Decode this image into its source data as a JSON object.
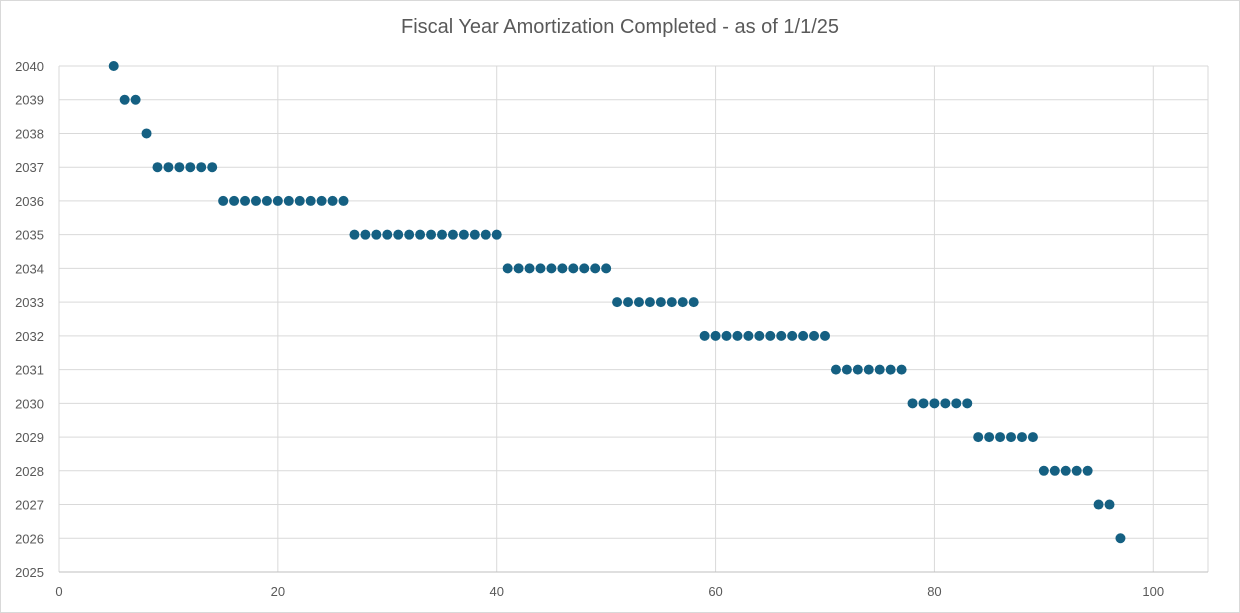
{
  "chart_data": {
    "type": "scatter",
    "title": "Fiscal Year Amortization Completed - as of 1/1/25",
    "xlabel": "",
    "ylabel": "",
    "xlim": [
      0,
      105
    ],
    "ylim": [
      2025,
      2040
    ],
    "x_ticks": [
      0,
      20,
      40,
      60,
      80,
      100
    ],
    "y_ticks": [
      2025,
      2026,
      2027,
      2028,
      2029,
      2030,
      2031,
      2032,
      2033,
      2034,
      2035,
      2036,
      2037,
      2038,
      2039,
      2040
    ],
    "grid": true,
    "legend": "none",
    "marker_color": "#156082",
    "points": [
      [
        5,
        2040
      ],
      [
        6,
        2039
      ],
      [
        7,
        2039
      ],
      [
        8,
        2038
      ],
      [
        9,
        2037
      ],
      [
        10,
        2037
      ],
      [
        11,
        2037
      ],
      [
        12,
        2037
      ],
      [
        13,
        2037
      ],
      [
        14,
        2037
      ],
      [
        15,
        2036
      ],
      [
        16,
        2036
      ],
      [
        17,
        2036
      ],
      [
        18,
        2036
      ],
      [
        19,
        2036
      ],
      [
        20,
        2036
      ],
      [
        21,
        2036
      ],
      [
        22,
        2036
      ],
      [
        23,
        2036
      ],
      [
        24,
        2036
      ],
      [
        25,
        2036
      ],
      [
        26,
        2036
      ],
      [
        27,
        2035
      ],
      [
        28,
        2035
      ],
      [
        29,
        2035
      ],
      [
        30,
        2035
      ],
      [
        31,
        2035
      ],
      [
        32,
        2035
      ],
      [
        33,
        2035
      ],
      [
        34,
        2035
      ],
      [
        35,
        2035
      ],
      [
        36,
        2035
      ],
      [
        37,
        2035
      ],
      [
        38,
        2035
      ],
      [
        39,
        2035
      ],
      [
        40,
        2035
      ],
      [
        41,
        2034
      ],
      [
        42,
        2034
      ],
      [
        43,
        2034
      ],
      [
        44,
        2034
      ],
      [
        45,
        2034
      ],
      [
        46,
        2034
      ],
      [
        47,
        2034
      ],
      [
        48,
        2034
      ],
      [
        49,
        2034
      ],
      [
        50,
        2034
      ],
      [
        51,
        2033
      ],
      [
        52,
        2033
      ],
      [
        53,
        2033
      ],
      [
        54,
        2033
      ],
      [
        55,
        2033
      ],
      [
        56,
        2033
      ],
      [
        57,
        2033
      ],
      [
        58,
        2033
      ],
      [
        59,
        2032
      ],
      [
        60,
        2032
      ],
      [
        61,
        2032
      ],
      [
        62,
        2032
      ],
      [
        63,
        2032
      ],
      [
        64,
        2032
      ],
      [
        65,
        2032
      ],
      [
        66,
        2032
      ],
      [
        67,
        2032
      ],
      [
        68,
        2032
      ],
      [
        69,
        2032
      ],
      [
        70,
        2032
      ],
      [
        71,
        2031
      ],
      [
        72,
        2031
      ],
      [
        73,
        2031
      ],
      [
        74,
        2031
      ],
      [
        75,
        2031
      ],
      [
        76,
        2031
      ],
      [
        77,
        2031
      ],
      [
        78,
        2030
      ],
      [
        79,
        2030
      ],
      [
        80,
        2030
      ],
      [
        81,
        2030
      ],
      [
        82,
        2030
      ],
      [
        83,
        2030
      ],
      [
        84,
        2029
      ],
      [
        85,
        2029
      ],
      [
        86,
        2029
      ],
      [
        87,
        2029
      ],
      [
        88,
        2029
      ],
      [
        89,
        2029
      ],
      [
        90,
        2028
      ],
      [
        91,
        2028
      ],
      [
        92,
        2028
      ],
      [
        93,
        2028
      ],
      [
        94,
        2028
      ],
      [
        95,
        2027
      ],
      [
        96,
        2027
      ],
      [
        97,
        2026
      ]
    ]
  }
}
